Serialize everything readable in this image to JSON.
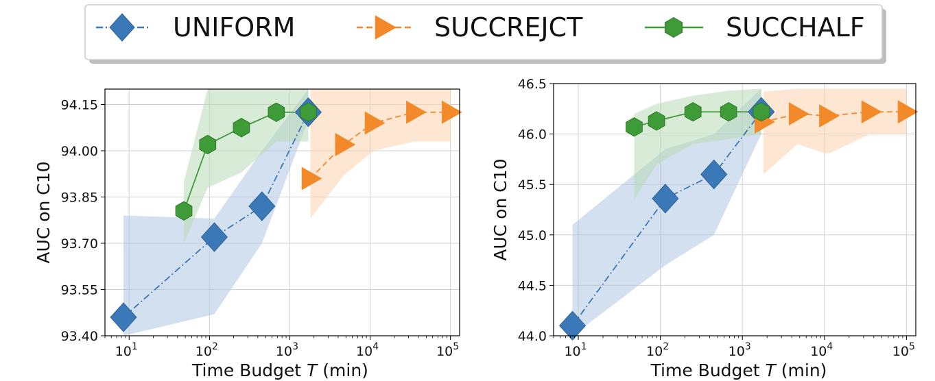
{
  "legend": {
    "items": [
      {
        "label": "UNIFORM",
        "color": "#3a78b8",
        "marker": "diamond",
        "line": "dashdot"
      },
      {
        "label": "SUCCREJCT",
        "color": "#f28a2a",
        "marker": "triangle-right",
        "line": "dashed"
      },
      {
        "label": "SUCCHALF",
        "color": "#3f9a38",
        "marker": "hexagon",
        "line": "solid"
      }
    ]
  },
  "colors": {
    "uniform": "#3a78b8",
    "succrejct": "#f28a2a",
    "succhalf": "#3f9a38",
    "uniform_band": "#aec7e1",
    "succrejct_band": "#fbd3ae",
    "succhalf_band": "#b8dab4"
  },
  "chart_data": [
    {
      "type": "line",
      "x_scale": "log",
      "xlabel_main": "Time Budget ",
      "xlabel_var": "T",
      "xlabel_unit": " (min)",
      "ylabel": "AUC on C10",
      "xlim": [
        5,
        130000
      ],
      "ylim": [
        93.4,
        94.2
      ],
      "yticks": [
        93.4,
        93.55,
        93.7,
        93.85,
        94.0,
        94.15
      ],
      "ytick_labels": [
        "93.40",
        "93.55",
        "93.70",
        "93.85",
        "94.00",
        "94.15"
      ],
      "xticks": [
        1,
        2,
        3,
        4,
        5
      ],
      "grid": true,
      "series": [
        {
          "name": "UNIFORM",
          "x": [
            8.5,
            115,
            450,
            1700
          ],
          "y": [
            93.46,
            93.72,
            93.82,
            94.125
          ],
          "band_lower": [
            93.4,
            93.47,
            93.7,
            94.1
          ],
          "band_upper": [
            93.79,
            93.78,
            94.0,
            94.2
          ]
        },
        {
          "name": "SUCCREJCT",
          "x": [
            1800,
            4700,
            11000,
            36000,
            100000
          ],
          "y": [
            93.91,
            94.02,
            94.09,
            94.125,
            94.125
          ],
          "band_lower": [
            93.78,
            93.92,
            94.0,
            94.03,
            94.03
          ],
          "band_upper": [
            94.2,
            94.2,
            94.2,
            94.2,
            94.2
          ]
        },
        {
          "name": "SUCCHALF",
          "x": [
            48,
            95,
            250,
            680,
            1700
          ],
          "y": [
            93.805,
            94.02,
            94.075,
            94.125,
            94.125
          ],
          "band_lower": [
            93.7,
            93.88,
            93.93,
            94.03,
            94.03
          ],
          "band_upper": [
            93.9,
            94.2,
            94.2,
            94.2,
            94.2
          ]
        }
      ]
    },
    {
      "type": "line",
      "x_scale": "log",
      "xlabel_main": "Time Budget ",
      "xlabel_var": "T",
      "xlabel_unit": " (min)",
      "ylabel": "AUC on C10",
      "xlim": [
        5,
        130000
      ],
      "ylim": [
        44.0,
        46.5
      ],
      "yticks": [
        44.0,
        44.5,
        45.0,
        45.5,
        46.0,
        46.5
      ],
      "ytick_labels": [
        "44.0",
        "44.5",
        "45.0",
        "45.5",
        "46.0",
        "46.5"
      ],
      "xticks": [
        1,
        2,
        3,
        4,
        5
      ],
      "grid": true,
      "series": [
        {
          "name": "UNIFORM",
          "x": [
            8.5,
            115,
            450,
            1700
          ],
          "y": [
            44.1,
            45.36,
            45.6,
            46.22
          ],
          "band_lower": [
            44.0,
            44.7,
            45.0,
            46.0
          ],
          "band_upper": [
            45.1,
            45.85,
            46.0,
            46.45
          ]
        },
        {
          "name": "SUCCREJCT",
          "x": [
            1800,
            4700,
            11000,
            36000,
            100000
          ],
          "y": [
            46.12,
            46.2,
            46.18,
            46.22,
            46.22
          ],
          "band_lower": [
            45.6,
            45.9,
            45.8,
            46.0,
            46.0
          ],
          "band_upper": [
            46.42,
            46.45,
            46.45,
            46.45,
            46.45
          ]
        },
        {
          "name": "SUCCHALF",
          "x": [
            48,
            90,
            250,
            680,
            1700
          ],
          "y": [
            46.07,
            46.13,
            46.22,
            46.22,
            46.22
          ],
          "band_lower": [
            45.35,
            45.7,
            45.9,
            45.95,
            46.0
          ],
          "band_upper": [
            46.2,
            46.3,
            46.38,
            46.43,
            46.45
          ]
        }
      ]
    }
  ]
}
